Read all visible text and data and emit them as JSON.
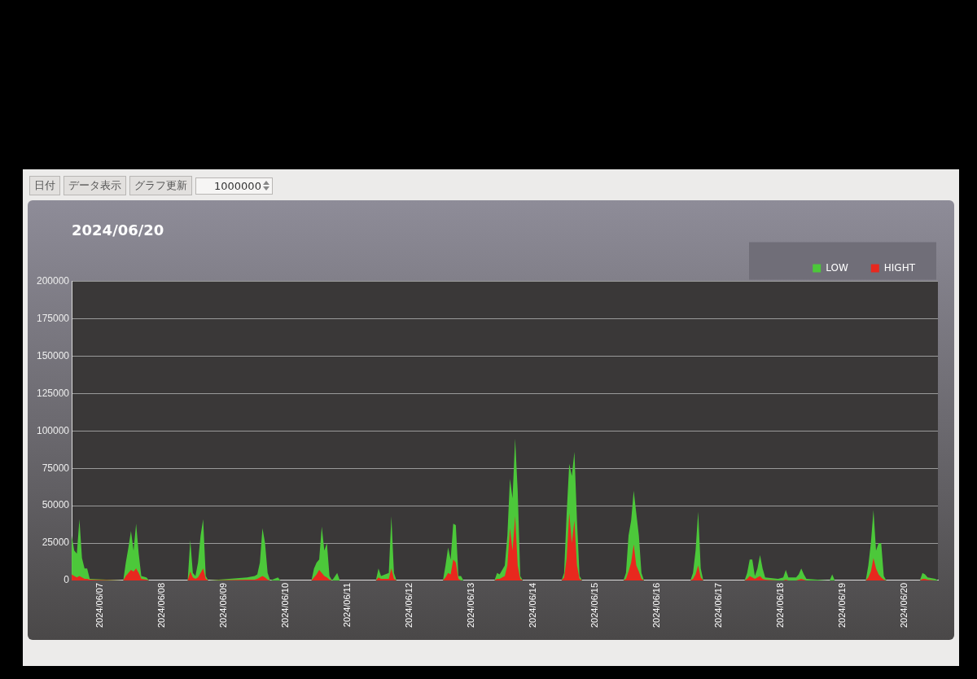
{
  "chart_data": {
    "type": "area",
    "title": "2024/06/20",
    "annotations": [
      "日付",
      "データ表示",
      "グラフ更新",
      "1000000"
    ],
    "legend": "top right",
    "grid": "y",
    "marker": "none",
    "ylim": [
      0,
      200000
    ],
    "yticks": [
      0,
      25000,
      50000,
      75000,
      100000,
      125000,
      150000,
      175000,
      200000
    ],
    "xlim": [
      "2024-06-06T13:00",
      "2024-06-20T13:00"
    ],
    "xticks": [
      {
        "value": "2024-06-07",
        "label": "2024/06/07"
      },
      {
        "value": "2024-06-08",
        "label": "2024/06/08"
      },
      {
        "value": "2024-06-09",
        "label": "2024/06/09"
      },
      {
        "value": "2024-06-10",
        "label": "2024/06/10"
      },
      {
        "value": "2024-06-11",
        "label": "2024/06/11"
      },
      {
        "value": "2024-06-12",
        "label": "2024/06/12"
      },
      {
        "value": "2024-06-13",
        "label": "2024/06/13"
      },
      {
        "value": "2024-06-14",
        "label": "2024/06/14"
      },
      {
        "value": "2024-06-15",
        "label": "2024/06/15"
      },
      {
        "value": "2024-06-16",
        "label": "2024/06/16"
      },
      {
        "value": "2024-06-17",
        "label": "2024/06/17"
      },
      {
        "value": "2024-06-18",
        "label": "2024/06/18"
      },
      {
        "value": "2024-06-19",
        "label": "2024/06/19"
      },
      {
        "value": "2024-06-20",
        "label": "2024/06/20"
      }
    ],
    "x": [
      "2024-06-06T13:00",
      "2024-06-06T14:00",
      "2024-06-06T15:00",
      "2024-06-06T16:00",
      "2024-06-06T17:00",
      "2024-06-06T18:00",
      "2024-06-06T19:00",
      "2024-06-06T20:00",
      "2024-06-07T09:00",
      "2024-06-07T10:00",
      "2024-06-07T11:00",
      "2024-06-07T12:00",
      "2024-06-07T13:00",
      "2024-06-07T14:00",
      "2024-06-07T15:00",
      "2024-06-07T16:00",
      "2024-06-07T18:00",
      "2024-06-07T19:00",
      "2024-06-08T10:00",
      "2024-06-08T11:00",
      "2024-06-08T12:00",
      "2024-06-08T13:00",
      "2024-06-08T14:00",
      "2024-06-08T15:00",
      "2024-06-08T16:00",
      "2024-06-08T17:00",
      "2024-06-08T18:00",
      "2024-06-09T09:00",
      "2024-06-09T12:00",
      "2024-06-09T13:00",
      "2024-06-09T14:00",
      "2024-06-09T15:00",
      "2024-06-09T16:00",
      "2024-06-09T17:00",
      "2024-06-09T18:00",
      "2024-06-09T21:00",
      "2024-06-09T22:00",
      "2024-06-10T10:00",
      "2024-06-10T11:00",
      "2024-06-10T12:00",
      "2024-06-10T13:00",
      "2024-06-10T14:00",
      "2024-06-10T15:00",
      "2024-06-10T16:00",
      "2024-06-10T17:00",
      "2024-06-10T18:00",
      "2024-06-10T20:00",
      "2024-06-10T21:00",
      "2024-06-11T11:00",
      "2024-06-11T12:00",
      "2024-06-11T13:00",
      "2024-06-11T16:00",
      "2024-06-11T17:00",
      "2024-06-11T18:00",
      "2024-06-11T19:00",
      "2024-06-12T13:00",
      "2024-06-12T14:00",
      "2024-06-12T15:00",
      "2024-06-12T16:00",
      "2024-06-12T17:00",
      "2024-06-12T18:00",
      "2024-06-12T19:00",
      "2024-06-12T20:00",
      "2024-06-12T21:00",
      "2024-06-13T09:00",
      "2024-06-13T10:00",
      "2024-06-13T11:00",
      "2024-06-13T13:00",
      "2024-06-13T14:00",
      "2024-06-13T15:00",
      "2024-06-13T16:00",
      "2024-06-13T17:00",
      "2024-06-13T18:00",
      "2024-06-13T19:00",
      "2024-06-13T20:00",
      "2024-06-14T11:00",
      "2024-06-14T12:00",
      "2024-06-14T13:00",
      "2024-06-14T14:00",
      "2024-06-14T15:00",
      "2024-06-14T16:00",
      "2024-06-14T17:00",
      "2024-06-14T18:00",
      "2024-06-14T19:00",
      "2024-06-15T11:00",
      "2024-06-15T12:00",
      "2024-06-15T13:00",
      "2024-06-15T14:00",
      "2024-06-15T15:00",
      "2024-06-15T16:00",
      "2024-06-15T17:00",
      "2024-06-15T18:00",
      "2024-06-15T19:00",
      "2024-06-16T13:00",
      "2024-06-16T14:00",
      "2024-06-16T15:00",
      "2024-06-16T16:00",
      "2024-06-16T17:00",
      "2024-06-16T18:00",
      "2024-06-17T10:00",
      "2024-06-17T11:00",
      "2024-06-17T12:00",
      "2024-06-17T13:00",
      "2024-06-17T14:00",
      "2024-06-17T15:00",
      "2024-06-17T16:00",
      "2024-06-17T17:00",
      "2024-06-17T18:00",
      "2024-06-17T23:00",
      "2024-06-18T01:00",
      "2024-06-18T02:00",
      "2024-06-18T03:00",
      "2024-06-18T06:00",
      "2024-06-18T07:00",
      "2024-06-18T08:00",
      "2024-06-18T09:00",
      "2024-06-18T10:00",
      "2024-06-18T19:00",
      "2024-06-18T20:00",
      "2024-06-18T21:00",
      "2024-06-19T09:00",
      "2024-06-19T10:00",
      "2024-06-19T11:00",
      "2024-06-19T12:00",
      "2024-06-19T13:00",
      "2024-06-19T14:00",
      "2024-06-19T15:00",
      "2024-06-19T16:00",
      "2024-06-19T17:00",
      "2024-06-20T06:00",
      "2024-06-20T07:00",
      "2024-06-20T08:00",
      "2024-06-20T09:00",
      "2024-06-20T12:00",
      "2024-06-20T13:00"
    ],
    "series": [
      {
        "name": "LOW",
        "color": "#4cc83a",
        "values": [
          30000,
          20000,
          18000,
          41000,
          15000,
          8000,
          8000,
          1000,
          0,
          12000,
          22000,
          33000,
          20000,
          38000,
          18000,
          3000,
          2000,
          0,
          0,
          27000,
          5000,
          3000,
          12000,
          30000,
          41000,
          3000,
          0,
          2000,
          3000,
          4000,
          12000,
          35000,
          25000,
          5000,
          0,
          2000,
          0,
          0,
          8000,
          12000,
          14000,
          36000,
          20000,
          25000,
          3000,
          0,
          5000,
          0,
          0,
          8000,
          3000,
          5000,
          43000,
          5000,
          0,
          0,
          10000,
          22000,
          14000,
          38000,
          37000,
          3000,
          3000,
          0,
          0,
          5000,
          4000,
          10000,
          30000,
          68000,
          55000,
          95000,
          60000,
          3000,
          0,
          0,
          5000,
          45000,
          78000,
          70000,
          86000,
          40000,
          3000,
          0,
          0,
          5000,
          30000,
          40000,
          60000,
          45000,
          30000,
          5000,
          0,
          0,
          5000,
          20000,
          46000,
          8000,
          0,
          0,
          5000,
          14000,
          14000,
          3000,
          8000,
          17000,
          8000,
          2000,
          1000,
          2000,
          7000,
          2000,
          2000,
          4000,
          8000,
          4000,
          1000,
          0,
          4000,
          0,
          0,
          10000,
          25000,
          47000,
          20000,
          25000,
          25000,
          3000,
          0,
          0,
          5000,
          4000,
          2000,
          1000,
          0
        ]
      },
      {
        "name": "HIGHT",
        "color": "#e8281e",
        "values": [
          4000,
          3000,
          2000,
          3000,
          2000,
          1000,
          1000,
          500,
          0,
          3000,
          5000,
          7000,
          6000,
          8000,
          5000,
          1000,
          500,
          0,
          0,
          6000,
          2000,
          1000,
          2000,
          5000,
          8000,
          1000,
          0,
          500,
          500,
          1000,
          2000,
          3000,
          2000,
          500,
          0,
          0,
          0,
          0,
          2000,
          4000,
          7000,
          5000,
          3000,
          2000,
          500,
          0,
          0,
          0,
          0,
          2000,
          1000,
          1000,
          8000,
          1000,
          0,
          0,
          2000,
          5000,
          4000,
          14000,
          12000,
          1000,
          0,
          0,
          0,
          1000,
          1000,
          3000,
          10000,
          35000,
          20000,
          43000,
          10000,
          1000,
          0,
          0,
          2000,
          15000,
          45000,
          25000,
          40000,
          10000,
          1000,
          0,
          0,
          1000,
          6000,
          12000,
          24000,
          10000,
          6000,
          1000,
          0,
          0,
          1000,
          4000,
          10000,
          2000,
          0,
          0,
          1000,
          3000,
          2000,
          1000,
          2000,
          3000,
          1000,
          500,
          0,
          0,
          500,
          0,
          0,
          500,
          1000,
          500,
          0,
          0,
          0,
          0,
          0,
          2000,
          6000,
          15000,
          8000,
          4000,
          2000,
          500,
          0,
          0,
          1000,
          1000,
          500,
          0,
          0
        ]
      }
    ]
  }
}
